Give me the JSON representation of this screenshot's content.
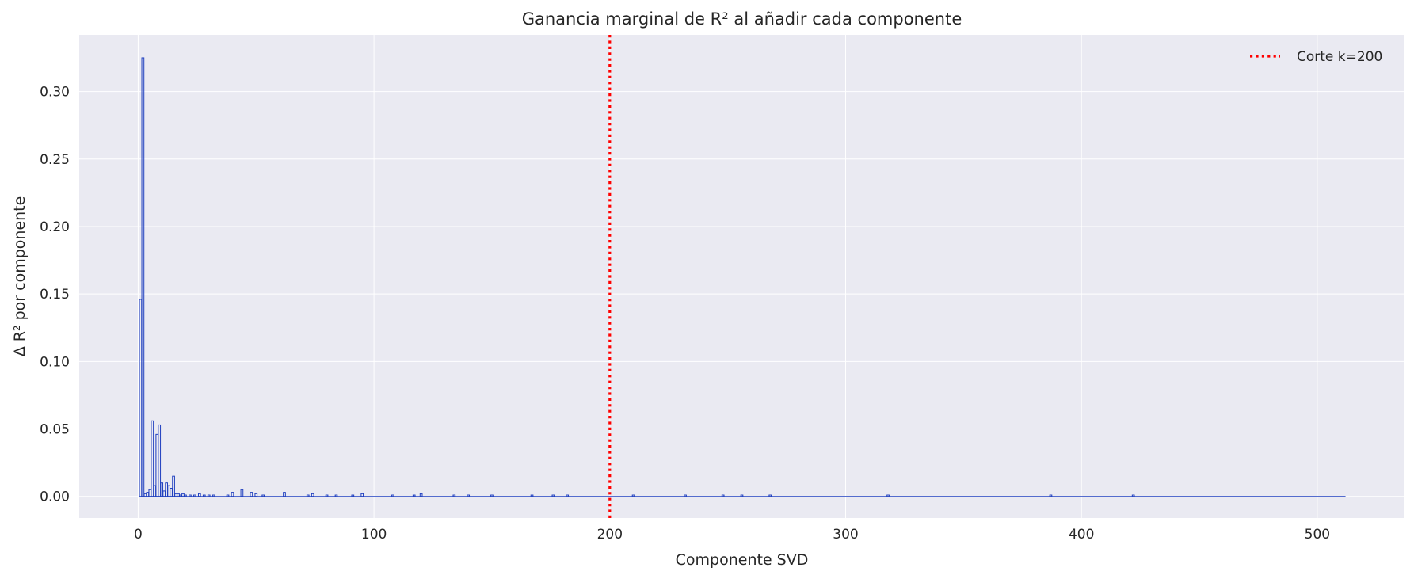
{
  "chart_data": {
    "type": "bar",
    "title": "Ganancia marginal de R² al añadir cada componente",
    "xlabel": "Componente SVD",
    "ylabel": "Δ R² por componente",
    "xlim": [
      -25,
      537
    ],
    "ylim": [
      -0.016,
      0.342
    ],
    "xticks": [
      0,
      100,
      200,
      300,
      400,
      500
    ],
    "xtick_labels": [
      "0",
      "100",
      "200",
      "300",
      "400",
      "500"
    ],
    "yticks": [
      0.0,
      0.05,
      0.1,
      0.15,
      0.2,
      0.25,
      0.3
    ],
    "ytick_labels": [
      "0.00",
      "0.05",
      "0.10",
      "0.15",
      "0.20",
      "0.25",
      "0.30"
    ],
    "grid": true,
    "legend_position": "top-right",
    "colors": {
      "plot_background": "#eaeaf2",
      "grid": "#ffffff",
      "bar_edge": "#1f3fbf",
      "cutoff_line": "#ff0000"
    },
    "cutoff": {
      "label": "Corte k=200",
      "x": 200,
      "style": "dotted"
    },
    "components": [
      1,
      2,
      3,
      4,
      5,
      6,
      7,
      8,
      9,
      10,
      11,
      12,
      13,
      14,
      15,
      16,
      17,
      18,
      19,
      20,
      22,
      24,
      26,
      28,
      30,
      32,
      38,
      40,
      44,
      48,
      50,
      53,
      62,
      72,
      74,
      80,
      84,
      91,
      95,
      108,
      117,
      120,
      134,
      140,
      150,
      167,
      176,
      182,
      210,
      232,
      248,
      256,
      268,
      318,
      387,
      422
    ],
    "values": [
      0.146,
      0.325,
      0.002,
      0.003,
      0.005,
      0.056,
      0.008,
      0.046,
      0.053,
      0.01,
      0.004,
      0.01,
      0.008,
      0.006,
      0.015,
      0.002,
      0.002,
      0.001,
      0.002,
      0.001,
      0.001,
      0.001,
      0.002,
      0.001,
      0.001,
      0.001,
      0.001,
      0.003,
      0.005,
      0.003,
      0.002,
      0.001,
      0.003,
      0.001,
      0.002,
      0.001,
      0.001,
      0.001,
      0.002,
      0.001,
      0.001,
      0.002,
      0.001,
      0.001,
      0.001,
      0.001,
      0.001,
      0.001,
      0.001,
      0.001,
      0.001,
      0.001,
      0.001,
      0.001,
      0.001,
      0.001
    ],
    "n_components": 512
  }
}
